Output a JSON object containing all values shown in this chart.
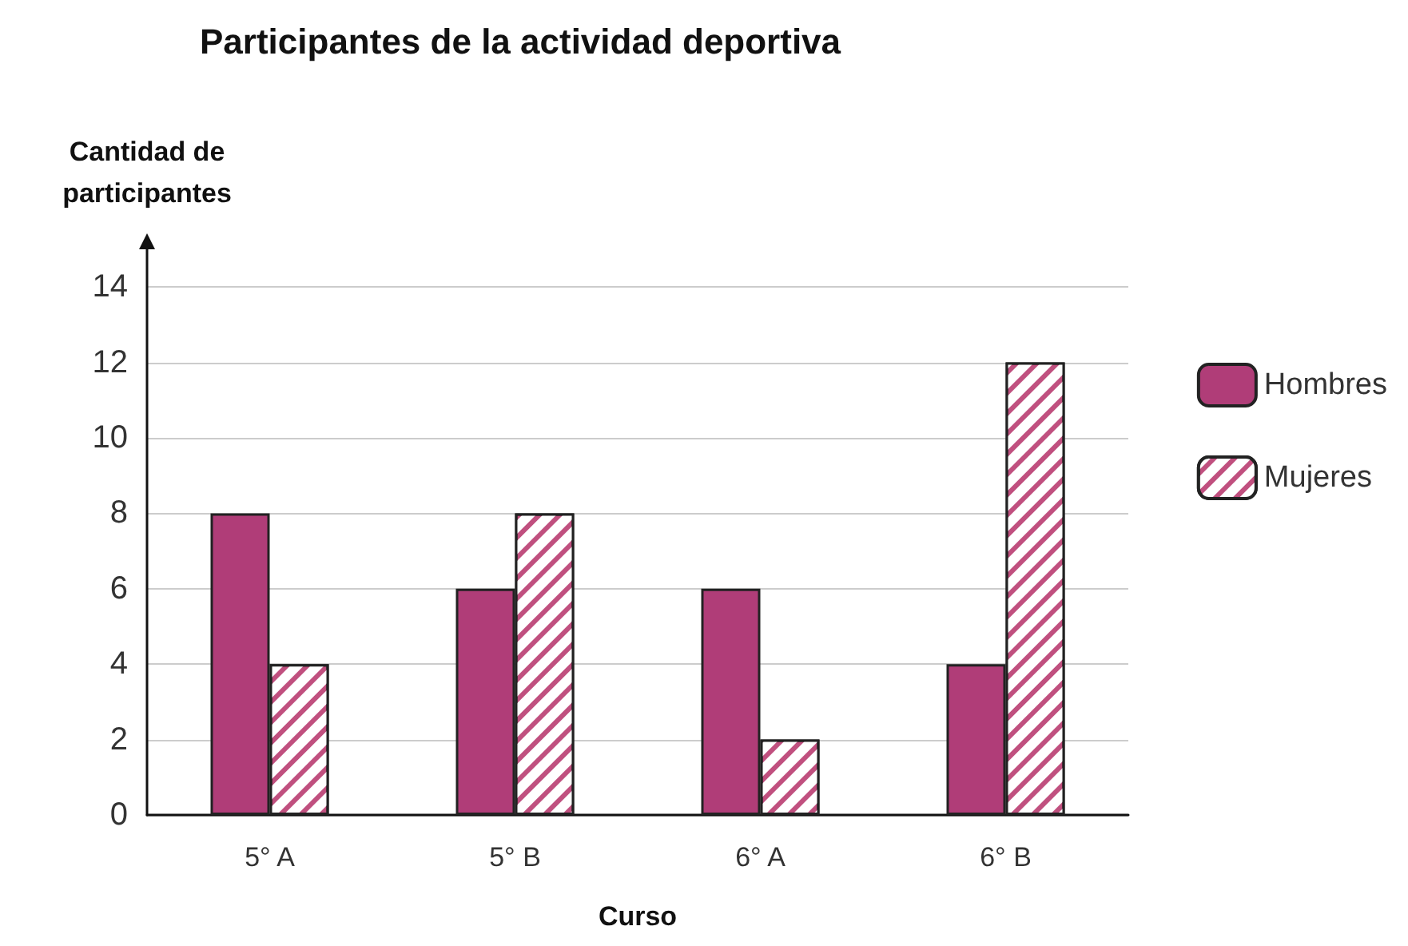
{
  "chart_data": {
    "type": "bar",
    "title": "Participantes de la actividad deportiva",
    "xlabel": "Curso",
    "ylabel": "Cantidad de\nparticipantes",
    "categories": [
      "5° A",
      "5° B",
      "6° A",
      "6° B"
    ],
    "series": [
      {
        "name": "Hombres",
        "color": "#b03d78",
        "values": [
          8,
          6,
          6,
          4
        ]
      },
      {
        "name": "Mujeres",
        "color": "#c0507f",
        "values": [
          4,
          8,
          2,
          12
        ]
      }
    ],
    "ylim": [
      0,
      15
    ],
    "yticks": [
      0,
      2,
      4,
      6,
      8,
      10,
      12,
      14
    ],
    "grid": "y",
    "legend": "right"
  }
}
